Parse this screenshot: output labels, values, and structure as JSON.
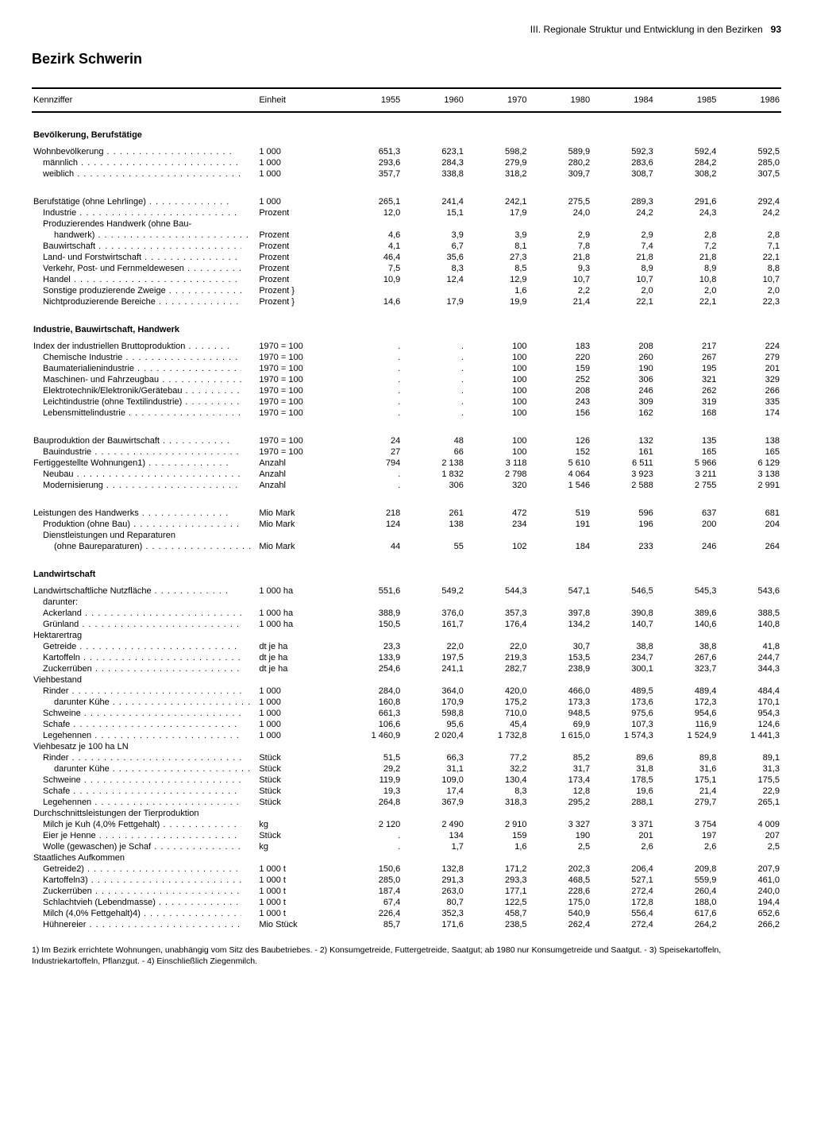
{
  "header": {
    "section": "III. Regionale Struktur und Entwicklung in den Bezirken",
    "page": "93"
  },
  "title": "Bezirk Schwerin",
  "columns": {
    "kennziffer": "Kennziffer",
    "einheit": "Einheit",
    "years": [
      "1955",
      "1960",
      "1970",
      "1980",
      "1984",
      "1985",
      "1986"
    ]
  },
  "sections": [
    {
      "title": "Bevölkerung, Berufstätige",
      "rows": [
        {
          "l": "Wohnbevölkerung",
          "u": "1 000",
          "v": [
            "651,3",
            "623,1",
            "598,2",
            "589,9",
            "592,3",
            "592,4",
            "592,5"
          ],
          "i": 0,
          "d": 1
        },
        {
          "l": "männlich",
          "u": "1 000",
          "v": [
            "293,6",
            "284,3",
            "279,9",
            "280,2",
            "283,6",
            "284,2",
            "285,0"
          ],
          "i": 1,
          "d": 1
        },
        {
          "l": "weiblich",
          "u": "1 000",
          "v": [
            "357,7",
            "338,8",
            "318,2",
            "309,7",
            "308,7",
            "308,2",
            "307,5"
          ],
          "i": 1,
          "d": 1
        },
        {
          "spacer": 1
        },
        {
          "l": "Berufstätige (ohne Lehrlinge)",
          "u": "1 000",
          "v": [
            "265,1",
            "241,4",
            "242,1",
            "275,5",
            "289,3",
            "291,6",
            "292,4"
          ],
          "i": 0,
          "d": 1
        },
        {
          "l": "Industrie",
          "u": "Prozent",
          "v": [
            "12,0",
            "15,1",
            "17,9",
            "24,0",
            "24,2",
            "24,3",
            "24,2"
          ],
          "i": 1,
          "d": 1
        },
        {
          "l": "Produzierendes Handwerk (ohne Bau-",
          "u": "",
          "v": [
            "",
            "",
            "",
            "",
            "",
            "",
            ""
          ],
          "i": 1,
          "d": 0
        },
        {
          "l": "handwerk)",
          "u": "Prozent",
          "v": [
            "4,6",
            "3,9",
            "3,9",
            "2,9",
            "2,9",
            "2,8",
            "2,8"
          ],
          "i": 2,
          "d": 1
        },
        {
          "l": "Bauwirtschaft",
          "u": "Prozent",
          "v": [
            "4,1",
            "6,7",
            "8,1",
            "7,8",
            "7,4",
            "7,2",
            "7,1"
          ],
          "i": 1,
          "d": 1
        },
        {
          "l": "Land- und Forstwirtschaft",
          "u": "Prozent",
          "v": [
            "46,4",
            "35,6",
            "27,3",
            "21,8",
            "21,8",
            "21,8",
            "22,1"
          ],
          "i": 1,
          "d": 1
        },
        {
          "l": "Verkehr, Post- und Fernmeldewesen",
          "u": "Prozent",
          "v": [
            "7,5",
            "8,3",
            "8,5",
            "9,3",
            "8,9",
            "8,9",
            "8,8"
          ],
          "i": 1,
          "d": 1
        },
        {
          "l": "Handel",
          "u": "Prozent",
          "v": [
            "10,9",
            "12,4",
            "12,9",
            "10,7",
            "10,7",
            "10,8",
            "10,7"
          ],
          "i": 1,
          "d": 1
        },
        {
          "l": "Sonstige produzierende Zweige",
          "u": "Prozent  }",
          "v": [
            "",
            "",
            "1,6",
            "2,2",
            "2,0",
            "2,0",
            "2,0"
          ],
          "i": 1,
          "d": 1
        },
        {
          "l": "Nichtproduzierende Bereiche",
          "u": "Prozent  }",
          "v": [
            "14,6",
            "17,9",
            "19,9",
            "21,4",
            "22,1",
            "22,1",
            "22,3"
          ],
          "i": 1,
          "d": 1
        }
      ]
    },
    {
      "title": "Industrie, Bauwirtschaft, Handwerk",
      "rows": [
        {
          "l": "Index der industriellen Bruttoproduktion",
          "u": "1970 = 100",
          "v": [
            ".",
            ".",
            "100",
            "183",
            "208",
            "217",
            "224"
          ],
          "i": 0,
          "d": 1
        },
        {
          "l": "Chemische Industrie",
          "u": "1970 = 100",
          "v": [
            ".",
            ".",
            "100",
            "220",
            "260",
            "267",
            "279"
          ],
          "i": 1,
          "d": 1
        },
        {
          "l": "Baumaterialienindustrie",
          "u": "1970 = 100",
          "v": [
            ".",
            ".",
            "100",
            "159",
            "190",
            "195",
            "201"
          ],
          "i": 1,
          "d": 1
        },
        {
          "l": "Maschinen- und Fahrzeugbau",
          "u": "1970 = 100",
          "v": [
            ".",
            ".",
            "100",
            "252",
            "306",
            "321",
            "329"
          ],
          "i": 1,
          "d": 1
        },
        {
          "l": "Elektrotechnik/Elektronik/Gerätebau",
          "u": "1970 = 100",
          "v": [
            ".",
            ".",
            "100",
            "208",
            "246",
            "262",
            "266"
          ],
          "i": 1,
          "d": 1
        },
        {
          "l": "Leichtindustrie (ohne Textilindustrie)",
          "u": "1970 = 100",
          "v": [
            ".",
            ".",
            "100",
            "243",
            "309",
            "319",
            "335"
          ],
          "i": 1,
          "d": 1
        },
        {
          "l": "Lebensmittelindustrie",
          "u": "1970 = 100",
          "v": [
            ".",
            ".",
            "100",
            "156",
            "162",
            "168",
            "174"
          ],
          "i": 1,
          "d": 1
        },
        {
          "spacer": 1
        },
        {
          "l": "Bauproduktion der Bauwirtschaft",
          "u": "1970 = 100",
          "v": [
            "24",
            "48",
            "100",
            "126",
            "132",
            "135",
            "138"
          ],
          "i": 0,
          "d": 1
        },
        {
          "l": "Bauindustrie",
          "u": "1970 = 100",
          "v": [
            "27",
            "66",
            "100",
            "152",
            "161",
            "165",
            "165"
          ],
          "i": 1,
          "d": 1
        },
        {
          "l": "Fertiggestellte Wohnungen1)",
          "u": "Anzahl",
          "v": [
            "794",
            "2 138",
            "3 118",
            "5 610",
            "6 511",
            "5 966",
            "6 129"
          ],
          "i": 0,
          "d": 1
        },
        {
          "l": "Neubau",
          "u": "Anzahl",
          "v": [
            ".",
            "1 832",
            "2 798",
            "4 064",
            "3 923",
            "3 211",
            "3 138"
          ],
          "i": 1,
          "d": 1
        },
        {
          "l": "Modernisierung",
          "u": "Anzahl",
          "v": [
            ".",
            "306",
            "320",
            "1 546",
            "2 588",
            "2 755",
            "2 991"
          ],
          "i": 1,
          "d": 1
        },
        {
          "spacer": 1
        },
        {
          "l": "Leistungen des Handwerks",
          "u": "Mio Mark",
          "v": [
            "218",
            "261",
            "472",
            "519",
            "596",
            "637",
            "681"
          ],
          "i": 0,
          "d": 1
        },
        {
          "l": "Produktion (ohne Bau)",
          "u": "Mio Mark",
          "v": [
            "124",
            "138",
            "234",
            "191",
            "196",
            "200",
            "204"
          ],
          "i": 1,
          "d": 1
        },
        {
          "l": "Dienstleistungen und Reparaturen",
          "u": "",
          "v": [
            "",
            "",
            "",
            "",
            "",
            "",
            ""
          ],
          "i": 1,
          "d": 0
        },
        {
          "l": "(ohne Baureparaturen)",
          "u": "Mio Mark",
          "v": [
            "44",
            "55",
            "102",
            "184",
            "233",
            "246",
            "264"
          ],
          "i": 2,
          "d": 1
        }
      ]
    },
    {
      "title": "Landwirtschaft",
      "rows": [
        {
          "l": "Landwirtschaftliche Nutzfläche",
          "u": "1 000 ha",
          "v": [
            "551,6",
            "549,2",
            "544,3",
            "547,1",
            "546,5",
            "545,3",
            "543,6"
          ],
          "i": 0,
          "d": 1
        },
        {
          "l": "darunter:",
          "u": "",
          "v": [
            "",
            "",
            "",
            "",
            "",
            "",
            ""
          ],
          "i": 1,
          "d": 0
        },
        {
          "l": "Ackerland",
          "u": "1 000 ha",
          "v": [
            "388,9",
            "376,0",
            "357,3",
            "397,8",
            "390,8",
            "389,6",
            "388,5"
          ],
          "i": 1,
          "d": 1
        },
        {
          "l": "Grünland",
          "u": "1 000 ha",
          "v": [
            "150,5",
            "161,7",
            "176,4",
            "134,2",
            "140,7",
            "140,6",
            "140,8"
          ],
          "i": 1,
          "d": 1
        },
        {
          "l": "Hektarertrag",
          "u": "",
          "v": [
            "",
            "",
            "",
            "",
            "",
            "",
            ""
          ],
          "i": 0,
          "d": 0
        },
        {
          "l": "Getreide",
          "u": "dt je ha",
          "v": [
            "23,3",
            "22,0",
            "22,0",
            "30,7",
            "38,8",
            "38,8",
            "41,8"
          ],
          "i": 1,
          "d": 1
        },
        {
          "l": "Kartoffeln",
          "u": "dt je ha",
          "v": [
            "133,9",
            "197,5",
            "219,3",
            "153,5",
            "234,7",
            "267,6",
            "244,7"
          ],
          "i": 1,
          "d": 1
        },
        {
          "l": "Zuckerrüben",
          "u": "dt je ha",
          "v": [
            "254,6",
            "241,1",
            "282,7",
            "238,9",
            "300,1",
            "323,7",
            "344,3"
          ],
          "i": 1,
          "d": 1
        },
        {
          "l": "Viehbestand",
          "u": "",
          "v": [
            "",
            "",
            "",
            "",
            "",
            "",
            ""
          ],
          "i": 0,
          "d": 0
        },
        {
          "l": "Rinder",
          "u": "1 000",
          "v": [
            "284,0",
            "364,0",
            "420,0",
            "466,0",
            "489,5",
            "489,4",
            "484,4"
          ],
          "i": 1,
          "d": 1
        },
        {
          "l": "darunter Kühe",
          "u": "1 000",
          "v": [
            "160,8",
            "170,9",
            "175,2",
            "173,3",
            "173,6",
            "172,3",
            "170,1"
          ],
          "i": 2,
          "d": 1
        },
        {
          "l": "Schweine",
          "u": "1 000",
          "v": [
            "661,3",
            "598,8",
            "710,0",
            "948,5",
            "975,6",
            "954,6",
            "954,3"
          ],
          "i": 1,
          "d": 1
        },
        {
          "l": "Schafe",
          "u": "1 000",
          "v": [
            "106,6",
            "95,6",
            "45,4",
            "69,9",
            "107,3",
            "116,9",
            "124,6"
          ],
          "i": 1,
          "d": 1
        },
        {
          "l": "Legehennen",
          "u": "1 000",
          "v": [
            "1 460,9",
            "2 020,4",
            "1 732,8",
            "1 615,0",
            "1 574,3",
            "1 524,9",
            "1 441,3"
          ],
          "i": 1,
          "d": 1
        },
        {
          "l": "Viehbesatz je 100 ha LN",
          "u": "",
          "v": [
            "",
            "",
            "",
            "",
            "",
            "",
            ""
          ],
          "i": 0,
          "d": 0
        },
        {
          "l": "Rinder",
          "u": "Stück",
          "v": [
            "51,5",
            "66,3",
            "77,2",
            "85,2",
            "89,6",
            "89,8",
            "89,1"
          ],
          "i": 1,
          "d": 1
        },
        {
          "l": "darunter Kühe",
          "u": "Stück",
          "v": [
            "29,2",
            "31,1",
            "32,2",
            "31,7",
            "31,8",
            "31,6",
            "31,3"
          ],
          "i": 2,
          "d": 1
        },
        {
          "l": "Schweine",
          "u": "Stück",
          "v": [
            "119,9",
            "109,0",
            "130,4",
            "173,4",
            "178,5",
            "175,1",
            "175,5"
          ],
          "i": 1,
          "d": 1
        },
        {
          "l": "Schafe",
          "u": "Stück",
          "v": [
            "19,3",
            "17,4",
            "8,3",
            "12,8",
            "19,6",
            "21,4",
            "22,9"
          ],
          "i": 1,
          "d": 1
        },
        {
          "l": "Legehennen",
          "u": "Stück",
          "v": [
            "264,8",
            "367,9",
            "318,3",
            "295,2",
            "288,1",
            "279,7",
            "265,1"
          ],
          "i": 1,
          "d": 1
        },
        {
          "l": "Durchschnittsleistungen der Tierproduktion",
          "u": "",
          "v": [
            "",
            "",
            "",
            "",
            "",
            "",
            ""
          ],
          "i": 0,
          "d": 0
        },
        {
          "l": "Milch je Kuh (4,0% Fettgehalt)",
          "u": "kg",
          "v": [
            "2 120",
            "2 490",
            "2 910",
            "3 327",
            "3 371",
            "3 754",
            "4 009"
          ],
          "i": 1,
          "d": 1
        },
        {
          "l": "Eier je Henne",
          "u": "Stück",
          "v": [
            ".",
            "134",
            "159",
            "190",
            "201",
            "197",
            "207"
          ],
          "i": 1,
          "d": 1
        },
        {
          "l": "Wolle (gewaschen) je Schaf",
          "u": "kg",
          "v": [
            ".",
            "1,7",
            "1,6",
            "2,5",
            "2,6",
            "2,6",
            "2,5"
          ],
          "i": 1,
          "d": 1
        },
        {
          "l": "Staatliches Aufkommen",
          "u": "",
          "v": [
            "",
            "",
            "",
            "",
            "",
            "",
            ""
          ],
          "i": 0,
          "d": 0
        },
        {
          "l": "Getreide2)",
          "u": "1 000 t",
          "v": [
            "150,6",
            "132,8",
            "171,2",
            "202,3",
            "206,4",
            "209,8",
            "207,9"
          ],
          "i": 1,
          "d": 1
        },
        {
          "l": "Kartoffeln3)",
          "u": "1 000 t",
          "v": [
            "285,0",
            "291,3",
            "293,3",
            "468,5",
            "527,1",
            "559,9",
            "461,0"
          ],
          "i": 1,
          "d": 1
        },
        {
          "l": "Zuckerrüben",
          "u": "1 000 t",
          "v": [
            "187,4",
            "263,0",
            "177,1",
            "228,6",
            "272,4",
            "260,4",
            "240,0"
          ],
          "i": 1,
          "d": 1
        },
        {
          "l": "Schlachtvieh (Lebendmasse)",
          "u": "1 000 t",
          "v": [
            "67,4",
            "80,7",
            "122,5",
            "175,0",
            "172,8",
            "188,0",
            "194,4"
          ],
          "i": 1,
          "d": 1
        },
        {
          "l": "Milch (4,0% Fettgehalt)4)",
          "u": "1 000 t",
          "v": [
            "226,4",
            "352,3",
            "458,7",
            "540,9",
            "556,4",
            "617,6",
            "652,6"
          ],
          "i": 1,
          "d": 1
        },
        {
          "l": "Hühnereier",
          "u": "Mio Stück",
          "v": [
            "85,7",
            "171,6",
            "238,5",
            "262,4",
            "272,4",
            "264,2",
            "266,2"
          ],
          "i": 1,
          "d": 1
        }
      ]
    }
  ],
  "footnote": "1) Im Bezirk errichtete Wohnungen, unabhängig vom Sitz des Baubetriebes. - 2) Konsumgetreide, Futtergetreide, Saatgut; ab 1980 nur Konsumgetreide und Saatgut. - 3) Speisekartoffeln, Industriekartoffeln, Pflanzgut. - 4) Einschließlich Ziegenmilch."
}
